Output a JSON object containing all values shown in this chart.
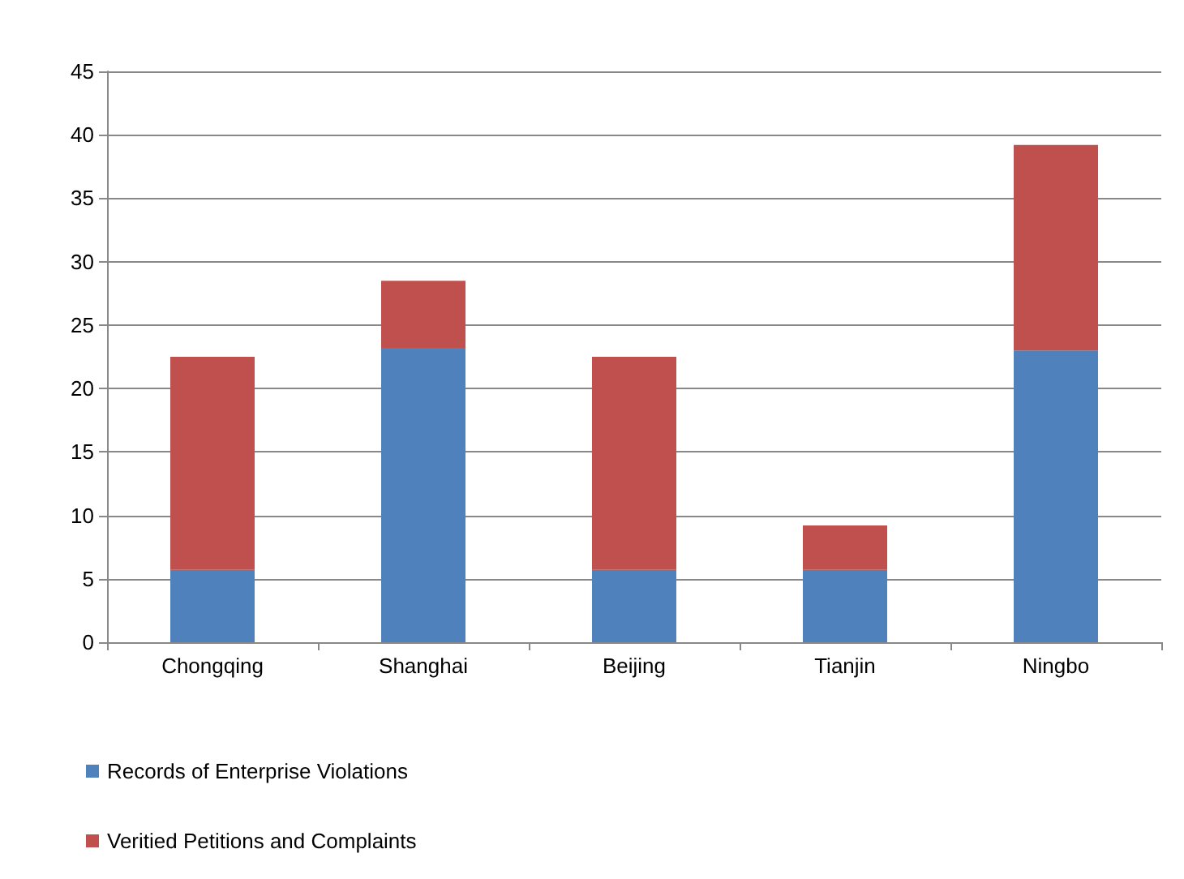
{
  "chart_data": {
    "type": "bar",
    "stacked": true,
    "categories": [
      "Chongqing",
      "Shanghai",
      "Beijing",
      "Tianjin",
      "Ningbo"
    ],
    "series": [
      {
        "name": "Records of Enterprise Violations",
        "color": "#4f81bd",
        "values": [
          5.7,
          23.2,
          5.7,
          5.7,
          23.0
        ]
      },
      {
        "name": "Veritied Petitions and Complaints",
        "color": "#c0504d",
        "values": [
          16.8,
          5.3,
          16.8,
          3.5,
          16.2
        ]
      }
    ],
    "ylim": [
      0,
      45
    ],
    "yticks": [
      0,
      5,
      10,
      15,
      20,
      25,
      30,
      35,
      40,
      45
    ],
    "grid": "y",
    "legend": "bottom left"
  }
}
